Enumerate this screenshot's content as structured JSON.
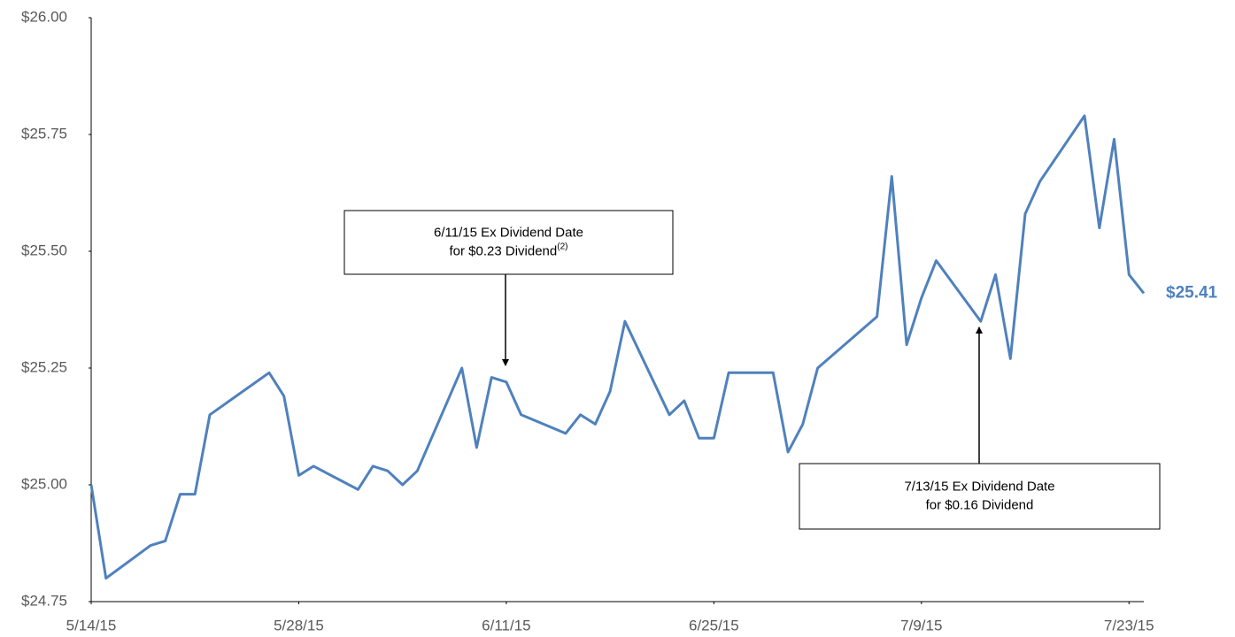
{
  "chart_data": {
    "type": "line",
    "x": [
      "2015-05-14",
      "2015-05-15",
      "2015-05-18",
      "2015-05-19",
      "2015-05-20",
      "2015-05-21",
      "2015-05-22",
      "2015-05-26",
      "2015-05-27",
      "2015-05-28",
      "2015-05-29",
      "2015-06-01",
      "2015-06-02",
      "2015-06-03",
      "2015-06-04",
      "2015-06-05",
      "2015-06-08",
      "2015-06-09",
      "2015-06-10",
      "2015-06-11",
      "2015-06-12",
      "2015-06-15",
      "2015-06-16",
      "2015-06-17",
      "2015-06-18",
      "2015-06-19",
      "2015-06-22",
      "2015-06-23",
      "2015-06-24",
      "2015-06-25",
      "2015-06-26",
      "2015-06-29",
      "2015-06-30",
      "2015-07-01",
      "2015-07-02",
      "2015-07-06",
      "2015-07-07",
      "2015-07-08",
      "2015-07-09",
      "2015-07-10",
      "2015-07-13",
      "2015-07-14",
      "2015-07-15",
      "2015-07-16",
      "2015-07-17",
      "2015-07-20",
      "2015-07-21",
      "2015-07-22",
      "2015-07-23",
      "2015-07-24"
    ],
    "series": [
      {
        "color": "#4f81bd",
        "values": [
          25.0,
          24.8,
          24.87,
          24.88,
          24.98,
          24.98,
          25.15,
          25.24,
          25.19,
          25.02,
          25.04,
          24.99,
          25.04,
          25.03,
          25.0,
          25.03,
          25.25,
          25.08,
          25.23,
          25.22,
          25.15,
          25.11,
          25.15,
          25.13,
          25.2,
          25.35,
          25.15,
          25.18,
          25.1,
          25.1,
          25.24,
          25.24,
          25.07,
          25.13,
          25.25,
          25.36,
          25.66,
          25.3,
          25.4,
          25.48,
          25.35,
          25.45,
          25.27,
          25.58,
          25.65,
          25.79,
          25.55,
          25.74,
          25.45,
          25.41
        ]
      }
    ],
    "last_value_label": "$25.41",
    "xlim": [
      "2015-05-14",
      "2015-07-24"
    ],
    "xticks": [
      {
        "value": "2015-05-14",
        "label": "5/14/15"
      },
      {
        "value": "2015-05-28",
        "label": "5/28/15"
      },
      {
        "value": "2015-06-11",
        "label": "6/11/15"
      },
      {
        "value": "2015-06-25",
        "label": "6/25/15"
      },
      {
        "value": "2015-07-09",
        "label": "7/9/15"
      },
      {
        "value": "2015-07-23",
        "label": "7/23/15"
      }
    ],
    "ylim": [
      24.75,
      26.0
    ],
    "yticks": [
      {
        "value": 24.75,
        "label": "$24.75"
      },
      {
        "value": 25.0,
        "label": "$25.00"
      },
      {
        "value": 25.25,
        "label": "$25.25"
      },
      {
        "value": 25.5,
        "label": "$25.50"
      },
      {
        "value": 25.75,
        "label": "$25.75"
      },
      {
        "value": 26.0,
        "label": "$26.00"
      }
    ],
    "grid": false,
    "annotations": [
      {
        "lines": [
          "6/11/15 Ex Dividend Date",
          "for $0.23 Dividend"
        ],
        "superscript": "(2)"
      },
      {
        "lines": [
          "7/13/15 Ex Dividend Date",
          "for $0.16 Dividend"
        ]
      }
    ]
  }
}
